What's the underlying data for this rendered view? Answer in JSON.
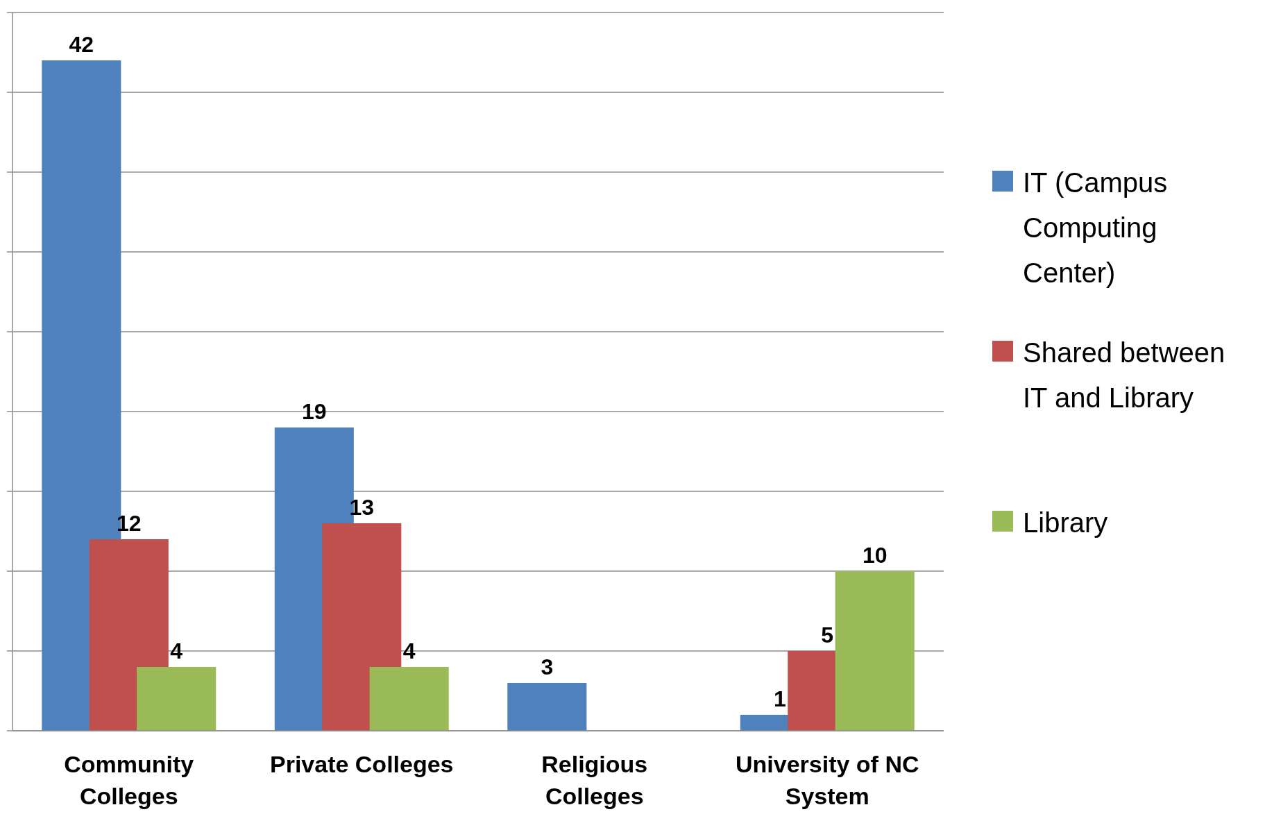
{
  "chart_data": {
    "type": "bar",
    "categories": [
      "Community Colleges",
      "Private Colleges",
      "Religious Colleges",
      "University of NC System"
    ],
    "series": [
      {
        "name": "IT (Campus Computing Center)",
        "color": "#4f81bd",
        "values": [
          42,
          19,
          3,
          1
        ]
      },
      {
        "name": "Shared between IT and Library",
        "color": "#c0504d",
        "values": [
          12,
          13,
          null,
          5
        ]
      },
      {
        "name": "Library",
        "color": "#9bbb59",
        "values": [
          4,
          4,
          null,
          10
        ]
      }
    ],
    "ylim": [
      0,
      45
    ],
    "yticks": [
      {
        "value": 0,
        "label": null
      },
      {
        "value": 5,
        "label": null
      },
      {
        "value": 10,
        "label": null
      },
      {
        "value": 15,
        "label": null
      },
      {
        "value": 20,
        "label": null
      },
      {
        "value": 25,
        "label": null
      },
      {
        "value": 30,
        "label": null
      },
      {
        "value": 35,
        "label": null
      },
      {
        "value": 40,
        "label": null
      },
      {
        "value": 45,
        "label": null
      }
    ],
    "grid": "y",
    "legend": "right",
    "tick_labels": "x",
    "data_labels": true
  }
}
